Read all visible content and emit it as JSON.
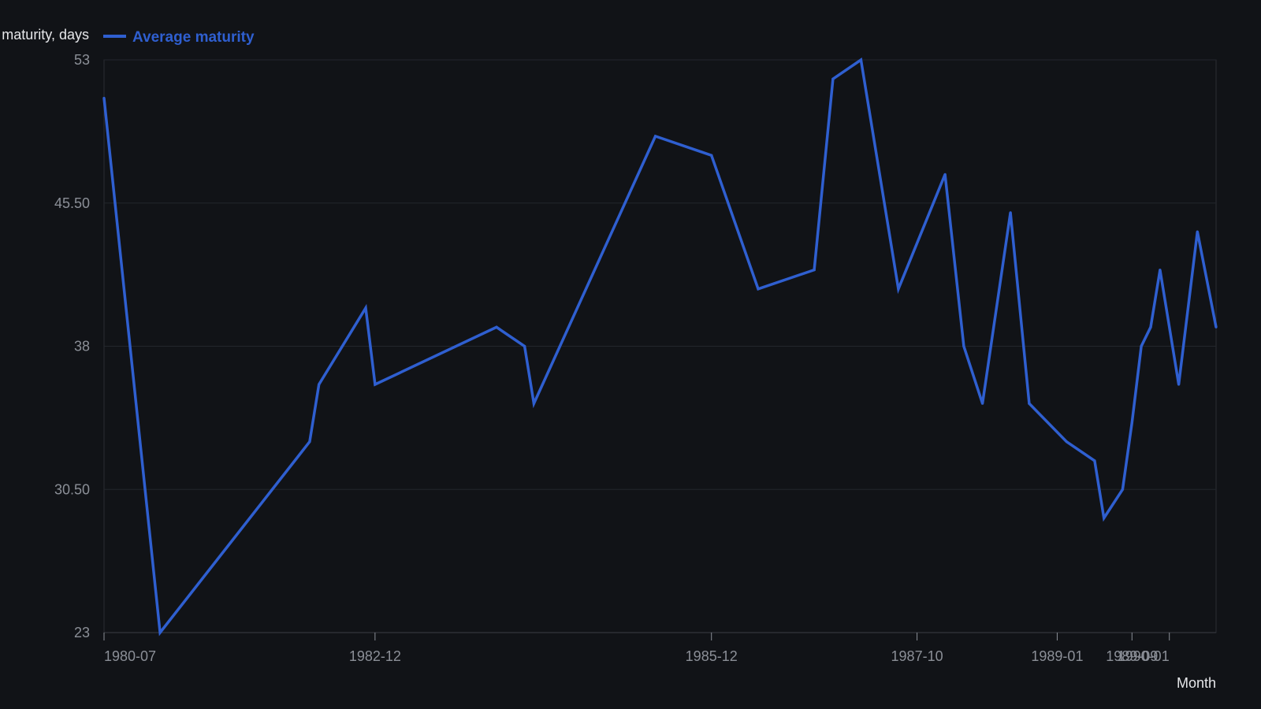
{
  "chart_data": {
    "type": "line",
    "title": "",
    "ylabel": "Average maturity, days",
    "xlabel": "Month",
    "ylim": [
      23,
      53
    ],
    "y_ticks": [
      23,
      30.5,
      38,
      45.5,
      53
    ],
    "y_tick_labels": [
      "23",
      "30.50",
      "38",
      "45.50",
      "53"
    ],
    "x_ticks": [
      "1980-07",
      "1982-12",
      "1985-12",
      "1987-10",
      "1989-01",
      "1989-09",
      "1990-01"
    ],
    "x_tick_labels": [
      "1980-07",
      "1982-12",
      "1985-12",
      "1987-10",
      "1989-01",
      "1989-09",
      "1990-01"
    ],
    "x_range": [
      "1980-07",
      "1990-01"
    ],
    "grid": "horizontal",
    "legend_position": "top-left",
    "series": [
      {
        "name": "Average maturity",
        "color": "#2f5fd0",
        "points": [
          {
            "x": "1980-07",
            "y": 51
          },
          {
            "x": "1981-01",
            "y": 23
          },
          {
            "x": "1982-05",
            "y": 33
          },
          {
            "x": "1982-06",
            "y": 36
          },
          {
            "x": "1982-11",
            "y": 40
          },
          {
            "x": "1982-12",
            "y": 36
          },
          {
            "x": "1984-01",
            "y": 39
          },
          {
            "x": "1984-04",
            "y": 38
          },
          {
            "x": "1984-05",
            "y": 35
          },
          {
            "x": "1985-06",
            "y": 49
          },
          {
            "x": "1985-12",
            "y": 48
          },
          {
            "x": "1986-05",
            "y": 41
          },
          {
            "x": "1986-11",
            "y": 42
          },
          {
            "x": "1987-01",
            "y": 52
          },
          {
            "x": "1987-04",
            "y": 53
          },
          {
            "x": "1987-08",
            "y": 41
          },
          {
            "x": "1988-01",
            "y": 47
          },
          {
            "x": "1988-03",
            "y": 38
          },
          {
            "x": "1988-05",
            "y": 35
          },
          {
            "x": "1988-08",
            "y": 45
          },
          {
            "x": "1988-10",
            "y": 35
          },
          {
            "x": "1989-02",
            "y": 33
          },
          {
            "x": "1989-05",
            "y": 32
          },
          {
            "x": "1989-06",
            "y": 29
          },
          {
            "x": "1989-08",
            "y": 30.5
          },
          {
            "x": "1989-09",
            "y": 34
          },
          {
            "x": "1989-10",
            "y": 38
          },
          {
            "x": "1989-11",
            "y": 39
          },
          {
            "x": "1989-12",
            "y": 42
          },
          {
            "x": "1990-02",
            "y": 36
          },
          {
            "x": "1990-04",
            "y": 44
          },
          {
            "x": "1990-06",
            "y": 39
          }
        ]
      }
    ]
  }
}
